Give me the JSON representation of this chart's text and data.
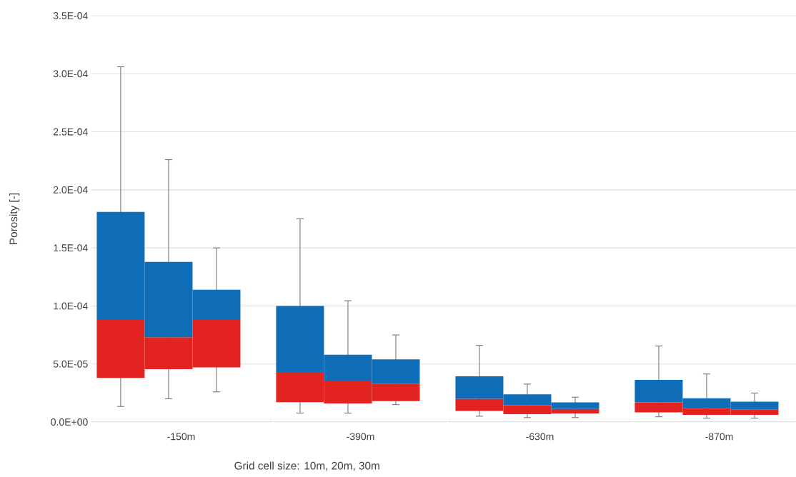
{
  "chart_data": {
    "type": "box",
    "xlabel": "Grid cell size: 10m, 20m, 30m",
    "ylabel": "Porosity [-]",
    "categories": [
      "-150m",
      "-390m",
      "-630m",
      "-870m"
    ],
    "colors": [
      "#e2231f",
      "#0f6cb6"
    ],
    "series": [
      {
        "boxes": [
          {
            "low": 1.34e-05,
            "q1": 3.8e-05,
            "median": 8.85e-05,
            "q3": 0.000181,
            "high": 0.000306
          },
          {
            "low": 7.7e-06,
            "q1": 1.7e-05,
            "median": 4.3e-05,
            "q3": 0.0001,
            "high": 0.000175
          },
          {
            "low": 5e-06,
            "q1": 9.5e-06,
            "median": 2e-05,
            "q3": 3.94e-05,
            "high": 6.6e-05
          },
          {
            "low": 4.5e-06,
            "q1": 8.3e-06,
            "median": 1.69e-05,
            "q3": 3.63e-05,
            "high": 6.55e-05
          }
        ]
      },
      {
        "boxes": [
          {
            "low": 2e-05,
            "q1": 4.55e-05,
            "median": 7.3e-05,
            "q3": 0.000138,
            "high": 0.000226
          },
          {
            "low": 7.7e-06,
            "q1": 1.6e-05,
            "median": 3.5e-05,
            "q3": 5.8e-05,
            "high": 0.0001045
          },
          {
            "low": 3.8e-06,
            "q1": 6.8e-06,
            "median": 1.44e-05,
            "q3": 2.39e-05,
            "high": 3.27e-05
          },
          {
            "low": 3.4e-06,
            "q1": 6.1e-06,
            "median": 1.22e-05,
            "q3": 2.05e-05,
            "high": 4.14e-05
          }
        ]
      },
      {
        "boxes": [
          {
            "low": 2.6e-05,
            "q1": 4.7e-05,
            "median": 8.8e-05,
            "q3": 0.000114,
            "high": 0.00015
          },
          {
            "low": 1.5e-05,
            "q1": 1.8e-05,
            "median": 3.3e-05,
            "q3": 5.4e-05,
            "high": 7.5e-05
          },
          {
            "low": 3.8e-06,
            "q1": 7.4e-06,
            "median": 1.13e-05,
            "q3": 1.69e-05,
            "high": 2.14e-05
          },
          {
            "low": 3.4e-06,
            "q1": 6.1e-06,
            "median": 1.06e-05,
            "q3": 1.76e-05,
            "high": 2.5e-05
          }
        ]
      }
    ],
    "ylim": [
      0,
      0.00035
    ],
    "yticks": [
      {
        "value": 0,
        "label": "0.0E+00"
      },
      {
        "value": 5e-05,
        "label": "5.0E-05"
      },
      {
        "value": 0.0001,
        "label": "1.0E-04"
      },
      {
        "value": 0.00015,
        "label": "1.5E-04"
      },
      {
        "value": 0.0002,
        "label": "2.0E-04"
      },
      {
        "value": 0.00025,
        "label": "2.5E-04"
      },
      {
        "value": 0.0003,
        "label": "3.0E-04"
      },
      {
        "value": 0.00035,
        "label": "3.5E-04"
      }
    ],
    "grid": "y"
  }
}
